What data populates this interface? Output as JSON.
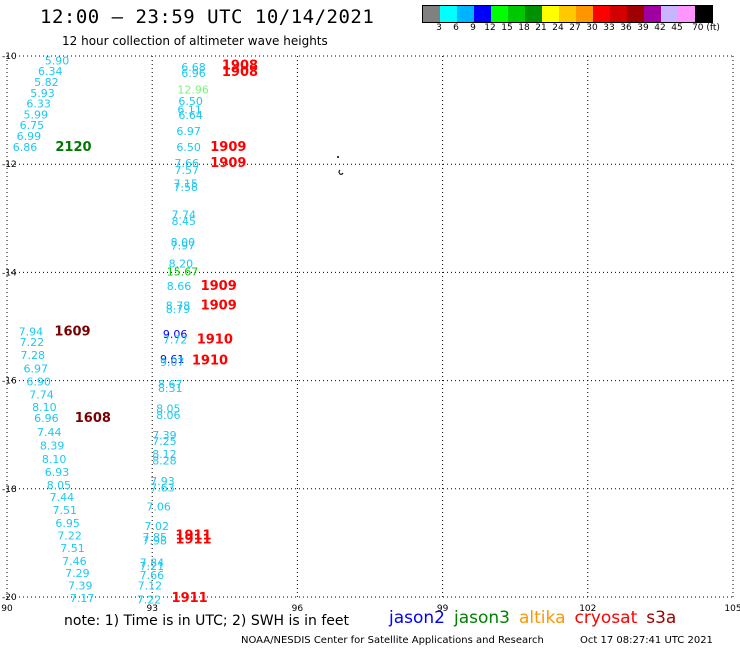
{
  "header": {
    "title": "12:00 – 23:59 UTC 10/14/2021",
    "subtitle": "12 hour collection of altimeter wave heights"
  },
  "legend": {
    "colors": [
      "#808080",
      "#00ffff",
      "#00b4ff",
      "#0000ff",
      "#00ff00",
      "#00c800",
      "#009000",
      "#ffff00",
      "#ffc800",
      "#ff9600",
      "#ff0000",
      "#d20000",
      "#a00000",
      "#a000a0",
      "#c8b4ff",
      "#ff96ff",
      "#000000"
    ],
    "labels": [
      "3",
      "6",
      "9",
      "12",
      "15",
      "18",
      "21",
      "24",
      "27",
      "30",
      "33",
      "36",
      "39",
      "42",
      "45",
      "70 (ft)"
    ]
  },
  "map_data": {
    "x_ticks": [
      "90",
      "93",
      "96",
      "99",
      "102",
      "105"
    ],
    "y_ticks": [
      "-10",
      "-12",
      "-14",
      "-16",
      "-18",
      "-20"
    ],
    "lon_range": [
      90,
      105
    ],
    "lat_range": [
      -20,
      -10
    ],
    "observations": [
      {
        "lon": 90.78,
        "lat": -10.08,
        "value": "5.90",
        "color": "#1ec8ee"
      },
      {
        "lon": 90.64,
        "lat": -10.28,
        "value": "6.34",
        "color": "#1ec8ee"
      },
      {
        "lon": 90.56,
        "lat": -10.48,
        "value": "5.82",
        "color": "#1ec8ee"
      },
      {
        "lon": 90.48,
        "lat": -10.68,
        "value": "5.93",
        "color": "#1ec8ee"
      },
      {
        "lon": 90.4,
        "lat": -10.88,
        "value": "6.33",
        "color": "#1ec8ee"
      },
      {
        "lon": 90.34,
        "lat": -11.08,
        "value": "5.99",
        "color": "#1ec8ee"
      },
      {
        "lon": 90.26,
        "lat": -11.28,
        "value": "6.75",
        "color": "#1ec8ee"
      },
      {
        "lon": 90.2,
        "lat": -11.48,
        "value": "6.99",
        "color": "#1ec8ee"
      },
      {
        "lon": 90.12,
        "lat": -11.68,
        "value": "6.86",
        "color": "#1ec8ee"
      },
      {
        "lon": 91.0,
        "lat": -11.68,
        "value": "2120",
        "color": "#007800"
      },
      {
        "lon": 93.6,
        "lat": -10.2,
        "value": "6.68",
        "color": "#1ec8ee"
      },
      {
        "lon": 93.6,
        "lat": -10.31,
        "value": "6.96",
        "color": "#1ec8ee"
      },
      {
        "lon": 94.44,
        "lat": -10.18,
        "value": "1908",
        "color": "#ff0000"
      },
      {
        "lon": 94.44,
        "lat": -10.3,
        "value": "1908",
        "color": "#ff0000"
      },
      {
        "lon": 93.52,
        "lat": -10.62,
        "value": "12.96",
        "color": "#80f080"
      },
      {
        "lon": 93.54,
        "lat": -10.83,
        "value": "6.50",
        "color": "#1ec8ee"
      },
      {
        "lon": 93.52,
        "lat": -10.99,
        "value": "6.11",
        "color": "#1ec8ee"
      },
      {
        "lon": 93.54,
        "lat": -11.09,
        "value": "6.64",
        "color": "#1ec8ee"
      },
      {
        "lon": 93.5,
        "lat": -11.39,
        "value": "6.97",
        "color": "#1ec8ee"
      },
      {
        "lon": 93.5,
        "lat": -11.68,
        "value": "6.50",
        "color": "#1ec8ee"
      },
      {
        "lon": 94.2,
        "lat": -11.68,
        "value": "1909",
        "color": "#ff0000"
      },
      {
        "lon": 93.46,
        "lat": -11.98,
        "value": "7.66",
        "color": "#1ec8ee"
      },
      {
        "lon": 93.46,
        "lat": -12.11,
        "value": "7.57",
        "color": "#1ec8ee"
      },
      {
        "lon": 94.2,
        "lat": -11.98,
        "value": "1909",
        "color": "#ff0000"
      },
      {
        "lon": 93.44,
        "lat": -12.36,
        "value": "7.15",
        "color": "#1ec8ee"
      },
      {
        "lon": 93.44,
        "lat": -12.42,
        "value": "7.58",
        "color": "#1ec8ee"
      },
      {
        "lon": 93.4,
        "lat": -12.93,
        "value": "7.74",
        "color": "#1ec8ee"
      },
      {
        "lon": 93.4,
        "lat": -13.05,
        "value": "8.45",
        "color": "#1ec8ee"
      },
      {
        "lon": 93.38,
        "lat": -13.44,
        "value": "8.00",
        "color": "#1ec8ee"
      },
      {
        "lon": 93.38,
        "lat": -13.5,
        "value": "7.97",
        "color": "#1ec8ee"
      },
      {
        "lon": 93.34,
        "lat": -13.84,
        "value": "8.20",
        "color": "#1ec8ee"
      },
      {
        "lon": 93.3,
        "lat": -13.98,
        "value": "15.67",
        "color": "#00c800"
      },
      {
        "lon": 93.3,
        "lat": -14.25,
        "value": "8.66",
        "color": "#1ec8ee"
      },
      {
        "lon": 94.0,
        "lat": -14.25,
        "value": "1909",
        "color": "#ff0000"
      },
      {
        "lon": 93.28,
        "lat": -14.61,
        "value": "8.78",
        "color": "#1ec8ee"
      },
      {
        "lon": 93.28,
        "lat": -14.68,
        "value": "8.79",
        "color": "#1ec8ee"
      },
      {
        "lon": 94.0,
        "lat": -14.61,
        "value": "1909",
        "color": "#ff0000"
      },
      {
        "lon": 90.24,
        "lat": -15.09,
        "value": "7.94",
        "color": "#1ec8ee"
      },
      {
        "lon": 90.98,
        "lat": -15.09,
        "value": "1609",
        "color": "#780000"
      },
      {
        "lon": 93.22,
        "lat": -15.14,
        "value": "9.06",
        "color": "#0000ff"
      },
      {
        "lon": 93.22,
        "lat": -15.24,
        "value": "7.72",
        "color": "#1ec8ee"
      },
      {
        "lon": 93.92,
        "lat": -15.24,
        "value": "1910",
        "color": "#ff0000"
      },
      {
        "lon": 90.26,
        "lat": -15.29,
        "value": "7.22",
        "color": "#1ec8ee"
      },
      {
        "lon": 90.28,
        "lat": -15.53,
        "value": "7.28",
        "color": "#1ec8ee"
      },
      {
        "lon": 93.16,
        "lat": -15.6,
        "value": "9.61",
        "color": "#0000ff"
      },
      {
        "lon": 93.16,
        "lat": -15.66,
        "value": "9.07",
        "color": "#1ec8ee"
      },
      {
        "lon": 93.82,
        "lat": -15.63,
        "value": "1910",
        "color": "#ff0000"
      },
      {
        "lon": 90.34,
        "lat": -15.78,
        "value": "6.97",
        "color": "#1ec8ee"
      },
      {
        "lon": 90.4,
        "lat": -16.02,
        "value": "6.90",
        "color": "#1ec8ee"
      },
      {
        "lon": 93.12,
        "lat": -16.06,
        "value": "8.67",
        "color": "#1ec8ee"
      },
      {
        "lon": 93.12,
        "lat": -16.14,
        "value": "8.31",
        "color": "#1ec8ee"
      },
      {
        "lon": 90.46,
        "lat": -16.26,
        "value": "7.74",
        "color": "#1ec8ee"
      },
      {
        "lon": 90.52,
        "lat": -16.49,
        "value": "8.10",
        "color": "#1ec8ee"
      },
      {
        "lon": 90.56,
        "lat": -16.69,
        "value": "6.96",
        "color": "#1ec8ee"
      },
      {
        "lon": 91.4,
        "lat": -16.69,
        "value": "1608",
        "color": "#780000"
      },
      {
        "lon": 93.08,
        "lat": -16.52,
        "value": "8.05",
        "color": "#1ec8ee"
      },
      {
        "lon": 93.08,
        "lat": -16.64,
        "value": "8.06",
        "color": "#1ec8ee"
      },
      {
        "lon": 90.62,
        "lat": -16.95,
        "value": "7.44",
        "color": "#1ec8ee"
      },
      {
        "lon": 93.0,
        "lat": -17.01,
        "value": "7.39",
        "color": "#1ec8ee"
      },
      {
        "lon": 93.0,
        "lat": -17.12,
        "value": "7.25",
        "color": "#1ec8ee"
      },
      {
        "lon": 90.68,
        "lat": -17.2,
        "value": "8.39",
        "color": "#1ec8ee"
      },
      {
        "lon": 93.0,
        "lat": -17.36,
        "value": "8.12",
        "color": "#1ec8ee"
      },
      {
        "lon": 93.0,
        "lat": -17.48,
        "value": "8.28",
        "color": "#1ec8ee"
      },
      {
        "lon": 90.72,
        "lat": -17.45,
        "value": "8.10",
        "color": "#1ec8ee"
      },
      {
        "lon": 90.78,
        "lat": -17.69,
        "value": "6.93",
        "color": "#1ec8ee"
      },
      {
        "lon": 92.96,
        "lat": -17.86,
        "value": "7.93",
        "color": "#1ec8ee"
      },
      {
        "lon": 92.96,
        "lat": -17.98,
        "value": "7.63",
        "color": "#1ec8ee"
      },
      {
        "lon": 90.82,
        "lat": -17.93,
        "value": "8.05",
        "color": "#1ec8ee"
      },
      {
        "lon": 90.88,
        "lat": -18.15,
        "value": "7.44",
        "color": "#1ec8ee"
      },
      {
        "lon": 92.88,
        "lat": -18.33,
        "value": "7.06",
        "color": "#1ec8ee"
      },
      {
        "lon": 90.94,
        "lat": -18.39,
        "value": "7.51",
        "color": "#1ec8ee"
      },
      {
        "lon": 91.0,
        "lat": -18.63,
        "value": "6.95",
        "color": "#1ec8ee"
      },
      {
        "lon": 92.84,
        "lat": -18.69,
        "value": "7.02",
        "color": "#1ec8ee"
      },
      {
        "lon": 91.04,
        "lat": -18.86,
        "value": "7.22",
        "color": "#1ec8ee"
      },
      {
        "lon": 92.8,
        "lat": -18.89,
        "value": "7.85",
        "color": "#1ec8ee"
      },
      {
        "lon": 92.8,
        "lat": -18.96,
        "value": "7.98",
        "color": "#1ec8ee"
      },
      {
        "lon": 93.48,
        "lat": -18.86,
        "value": "1911",
        "color": "#ff0000"
      },
      {
        "lon": 93.48,
        "lat": -18.94,
        "value": "1911",
        "color": "#ff0000"
      },
      {
        "lon": 91.1,
        "lat": -19.09,
        "value": "7.51",
        "color": "#1ec8ee"
      },
      {
        "lon": 91.14,
        "lat": -19.33,
        "value": "7.46",
        "color": "#1ec8ee"
      },
      {
        "lon": 92.74,
        "lat": -19.36,
        "value": "7.84",
        "color": "#1ec8ee"
      },
      {
        "lon": 92.74,
        "lat": -19.43,
        "value": "7.21",
        "color": "#1ec8ee"
      },
      {
        "lon": 91.2,
        "lat": -19.56,
        "value": "7.29",
        "color": "#1ec8ee"
      },
      {
        "lon": 92.74,
        "lat": -19.59,
        "value": "7.66",
        "color": "#1ec8ee"
      },
      {
        "lon": 91.26,
        "lat": -19.79,
        "value": "7.39",
        "color": "#1ec8ee"
      },
      {
        "lon": 92.7,
        "lat": -19.79,
        "value": "7.12",
        "color": "#1ec8ee"
      },
      {
        "lon": 91.3,
        "lat": -20.02,
        "value": "7.17",
        "color": "#1ec8ee"
      },
      {
        "lon": 92.68,
        "lat": -20.05,
        "value": "7.22",
        "color": "#1ec8ee"
      },
      {
        "lon": 93.4,
        "lat": -20.02,
        "value": "1911",
        "color": "#ff0000"
      }
    ]
  },
  "footer": {
    "note": "note: 1) Time is in UTC; 2) SWH is in feet",
    "satellites": [
      {
        "name": "jason2",
        "color": "#0000ff"
      },
      {
        "name": "jason3",
        "color": "#008000"
      },
      {
        "name": "altika",
        "color": "#ff9600"
      },
      {
        "name": "cryosat",
        "color": "#ff0000"
      },
      {
        "name": "s3a",
        "color": "#a00000"
      }
    ],
    "credit": "NOAA/NESDIS Center for Satellite Applications and Research",
    "timestamp": "Oct 17 08:27:41 UTC 2021"
  }
}
